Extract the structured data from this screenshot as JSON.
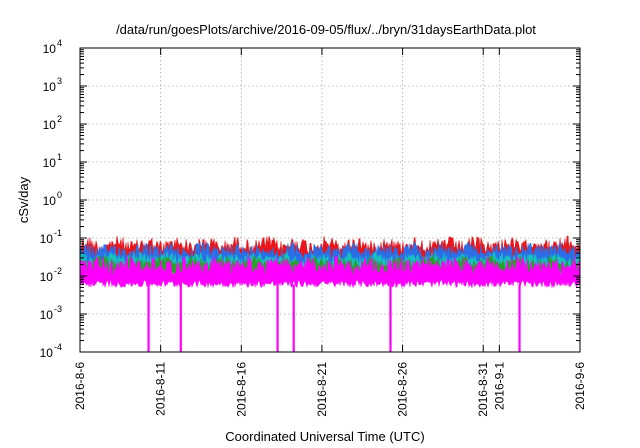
{
  "chart_data": {
    "type": "area",
    "title": "/data/run/goesPlots/archive/2016-09-05/flux/../bryn/31daysEarthData.plot",
    "xlabel": "Coordinated Universal Time (UTC)",
    "ylabel": "cSv/day",
    "y_scale": "log",
    "ylim": [
      0.0001,
      10000
    ],
    "xlim": [
      "2016-08-06",
      "2016-09-06"
    ],
    "grid": true,
    "legend": "none",
    "x_ticks": [
      "2016-8-6",
      "2016-8-11",
      "2016-8-16",
      "2016-8-21",
      "2016-8-26",
      "2016-8-31",
      "2016-9-1",
      "2016-9-6"
    ],
    "y_ticks": [
      {
        "value": 0.0001,
        "base": "10",
        "exp": "-4"
      },
      {
        "value": 0.001,
        "base": "10",
        "exp": "-3"
      },
      {
        "value": 0.01,
        "base": "10",
        "exp": "-2"
      },
      {
        "value": 0.1,
        "base": "10",
        "exp": "-1"
      },
      {
        "value": 1,
        "base": "10",
        "exp": "0"
      },
      {
        "value": 10,
        "base": "10",
        "exp": "1"
      },
      {
        "value": 100,
        "base": "10",
        "exp": "2"
      },
      {
        "value": 1000,
        "base": "10",
        "exp": "3"
      },
      {
        "value": 10000,
        "base": "10",
        "exp": "4"
      }
    ],
    "series": [
      {
        "color": "#e8161c",
        "typical_min": 0.02,
        "typical_max": 0.1
      },
      {
        "color": "#2a6ee8",
        "typical_min": 0.015,
        "typical_max": 0.07
      },
      {
        "color": "#16c0c0",
        "typical_min": 0.012,
        "typical_max": 0.04
      },
      {
        "color": "#2aa02a",
        "typical_min": 0.01,
        "typical_max": 0.03
      },
      {
        "color": "#ff00ff",
        "typical_min": 0.005,
        "typical_max": 0.03
      }
    ],
    "dropouts": [
      "2016-08-10",
      "2016-08-12",
      "2016-08-18",
      "2016-08-19",
      "2016-08-25",
      "2016-09-02"
    ]
  }
}
